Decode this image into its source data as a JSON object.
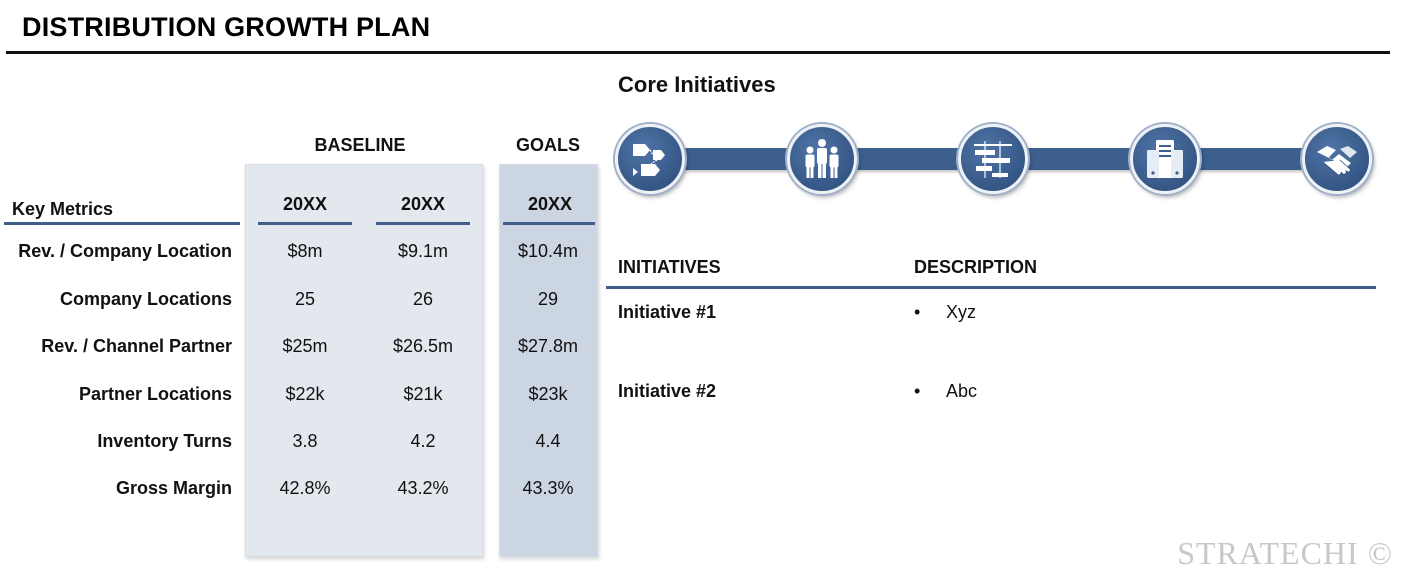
{
  "title": "DISTRIBUTION GROWTH PLAN",
  "metrics": {
    "key_metrics_label": "Key Metrics",
    "baseline_label": "BASELINE",
    "goals_label": "GOALS",
    "columns": [
      "20XX",
      "20XX",
      "20XX"
    ],
    "rows": [
      {
        "label": "Rev. / Company Location",
        "values": [
          "$8m",
          "$9.1m",
          "$10.4m"
        ]
      },
      {
        "label": "Company Locations",
        "values": [
          "25",
          "26",
          "29"
        ]
      },
      {
        "label": "Rev. / Channel Partner",
        "values": [
          "$25m",
          "$26.5m",
          "$27.8m"
        ]
      },
      {
        "label": "Partner Locations",
        "values": [
          "$22k",
          "$21k",
          "$23k"
        ]
      },
      {
        "label": "Inventory Turns",
        "values": [
          "3.8",
          "4.2",
          "4.4"
        ]
      },
      {
        "label": "Gross Margin",
        "values": [
          "42.8%",
          "43.2%",
          "43.3%"
        ]
      }
    ]
  },
  "core": {
    "title": "Core Initiatives",
    "icons": [
      "process-flow-icon",
      "people-group-icon",
      "gantt-chart-icon",
      "server-icon",
      "handshake-icon"
    ]
  },
  "initiatives": {
    "col_initiatives": "INITIATIVES",
    "col_description": "DESCRIPTION",
    "rows": [
      {
        "name": "Initiative #1",
        "bullet": "•",
        "description": "Xyz"
      },
      {
        "name": "Initiative #2",
        "bullet": "•",
        "description": "Abc"
      }
    ]
  },
  "watermark": "STRATECHI ©",
  "colors": {
    "accent": "#3d5f8e",
    "baseline_panel": "#e3e7ee",
    "goals_panel": "#ccd6e3"
  }
}
